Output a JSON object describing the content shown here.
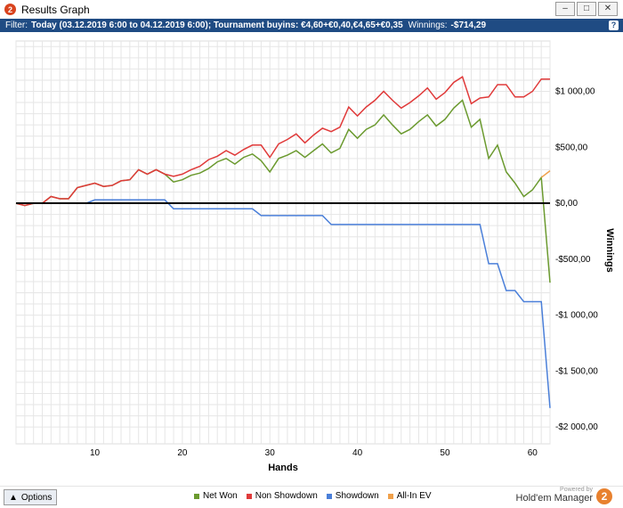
{
  "window": {
    "title": "Results Graph",
    "logo_text": "2",
    "controls": [
      "–",
      "□",
      "✕"
    ]
  },
  "filter": {
    "prefix": "Filter:",
    "text": "Today (03.12.2019 6:00 to 04.12.2019 6:00); Tournament buyins: €4,60+€0,40,€4,65+€0,35",
    "winnings_label": "Winnings:",
    "winnings_value": "-$714,29",
    "help": "?"
  },
  "bottom": {
    "options_label": "Options",
    "options_icon": "triangle-up-icon",
    "powered_by": "Powered by",
    "brand": "Hold'em Manager",
    "brand_logo": "2"
  },
  "colors": {
    "net_won": "#6b9a2f",
    "non_showdown": "#e03a3a",
    "showdown": "#4a7fd9",
    "allin_ev": "#f0a04b",
    "zero_line": "#000000",
    "grid": "#e6e6e6"
  },
  "chart_data": {
    "type": "line",
    "title": "",
    "xlabel": "Hands",
    "ylabel": "Winnings",
    "xlim": [
      1,
      62
    ],
    "ylim": [
      -2150,
      1450
    ],
    "x_ticks": [
      10,
      20,
      30,
      40,
      50,
      60
    ],
    "y_ticks": [
      1000,
      500,
      0,
      -500,
      -1000,
      -1500,
      -2000
    ],
    "y_tick_labels": [
      "$1 000,00",
      "$500,00",
      "$0,00",
      "-$500,00",
      "-$1 000,00",
      "-$1 500,00",
      "-$2 000,00"
    ],
    "grid": true,
    "legend_position": "bottom",
    "series": [
      {
        "name": "Net Won",
        "color": "#6b9a2f",
        "x": [
          1,
          2,
          3,
          4,
          5,
          6,
          7,
          8,
          9,
          10,
          11,
          12,
          13,
          14,
          15,
          16,
          17,
          18,
          19,
          20,
          21,
          22,
          23,
          24,
          25,
          26,
          27,
          28,
          29,
          30,
          31,
          32,
          33,
          34,
          35,
          36,
          37,
          38,
          39,
          40,
          41,
          42,
          43,
          44,
          45,
          46,
          47,
          48,
          49,
          50,
          51,
          52,
          53,
          54,
          55,
          56,
          57,
          58,
          59,
          60,
          61,
          62
        ],
        "values": [
          0,
          -20,
          0,
          0,
          60,
          40,
          40,
          140,
          160,
          180,
          150,
          160,
          200,
          210,
          300,
          260,
          300,
          260,
          190,
          210,
          250,
          270,
          310,
          370,
          400,
          350,
          410,
          440,
          380,
          280,
          400,
          430,
          470,
          410,
          470,
          530,
          450,
          490,
          660,
          580,
          660,
          700,
          790,
          700,
          620,
          660,
          730,
          790,
          690,
          750,
          850,
          920,
          680,
          750,
          400,
          520,
          280,
          180,
          60,
          120,
          230,
          -710
        ]
      },
      {
        "name": "Non Showdown",
        "color": "#e03a3a",
        "x": [
          1,
          2,
          3,
          4,
          5,
          6,
          7,
          8,
          9,
          10,
          11,
          12,
          13,
          14,
          15,
          16,
          17,
          18,
          19,
          20,
          21,
          22,
          23,
          24,
          25,
          26,
          27,
          28,
          29,
          30,
          31,
          32,
          33,
          34,
          35,
          36,
          37,
          38,
          39,
          40,
          41,
          42,
          43,
          44,
          45,
          46,
          47,
          48,
          49,
          50,
          51,
          52,
          53,
          54,
          55,
          56,
          57,
          58,
          59,
          60,
          61,
          62
        ],
        "values": [
          0,
          -20,
          0,
          0,
          60,
          40,
          40,
          140,
          160,
          180,
          150,
          160,
          200,
          210,
          300,
          260,
          300,
          260,
          240,
          260,
          300,
          330,
          390,
          420,
          470,
          430,
          480,
          520,
          520,
          410,
          530,
          570,
          620,
          540,
          610,
          670,
          640,
          680,
          860,
          780,
          860,
          920,
          1000,
          920,
          850,
          900,
          960,
          1030,
          930,
          990,
          1080,
          1130,
          890,
          940,
          950,
          1060,
          1060,
          950,
          950,
          1000,
          1110,
          1110
        ]
      },
      {
        "name": "Showdown",
        "color": "#4a7fd9",
        "x": [
          1,
          2,
          3,
          4,
          5,
          6,
          7,
          8,
          9,
          10,
          11,
          12,
          13,
          14,
          15,
          16,
          17,
          18,
          19,
          20,
          21,
          22,
          23,
          24,
          25,
          26,
          27,
          28,
          29,
          30,
          31,
          32,
          33,
          34,
          35,
          36,
          37,
          38,
          39,
          40,
          41,
          42,
          43,
          44,
          45,
          46,
          47,
          48,
          49,
          50,
          51,
          52,
          53,
          54,
          55,
          56,
          57,
          58,
          59,
          60,
          61,
          62
        ],
        "values": [
          0,
          0,
          0,
          0,
          0,
          0,
          0,
          0,
          0,
          30,
          30,
          30,
          30,
          30,
          30,
          30,
          30,
          30,
          -50,
          -50,
          -50,
          -50,
          -50,
          -50,
          -50,
          -50,
          -50,
          -50,
          -110,
          -110,
          -110,
          -110,
          -110,
          -110,
          -110,
          -110,
          -190,
          -190,
          -190,
          -190,
          -190,
          -190,
          -190,
          -190,
          -190,
          -190,
          -190,
          -190,
          -190,
          -190,
          -190,
          -190,
          -190,
          -190,
          -540,
          -540,
          -780,
          -780,
          -880,
          -880,
          -880,
          -1830
        ]
      },
      {
        "name": "All-In EV",
        "color": "#f0a04b",
        "x": [
          61,
          62
        ],
        "values": [
          230,
          290
        ]
      }
    ]
  }
}
